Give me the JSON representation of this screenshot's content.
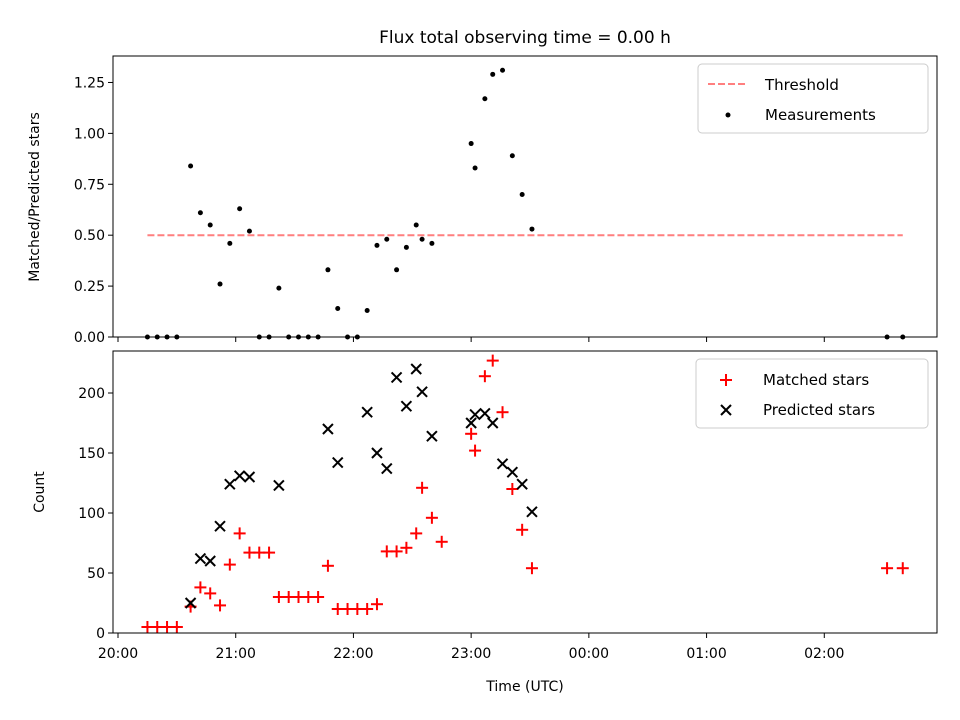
{
  "title": "Flux total observing time = 0.00 h",
  "colors": {
    "threshold": "#ff7f7f",
    "matched": "#ff0000",
    "predicted": "#000000",
    "measurement": "#000000"
  },
  "chart_data": [
    {
      "type": "scatter",
      "ylabel": "Matched/Predicted stars",
      "xlabel": "",
      "xlim": [
        "20:00",
        "03:00"
      ],
      "ylim": [
        0,
        1.38
      ],
      "yticks": [
        0,
        0.25,
        0.5,
        0.75,
        1.0,
        1.25
      ],
      "ytick_labels": [
        "0.00",
        "0.25",
        "0.50",
        "0.75",
        "1.00",
        "1.25"
      ],
      "legend": {
        "placement": "top-right",
        "entries": [
          "Threshold",
          "Measurements"
        ]
      },
      "threshold": {
        "name": "Threshold",
        "value": 0.5,
        "x_start": "20:15",
        "x_end": "02:40"
      },
      "series": [
        {
          "name": "Measurements",
          "points": [
            [
              "20:15",
              0
            ],
            [
              "20:20",
              0
            ],
            [
              "20:25",
              0
            ],
            [
              "20:30",
              0
            ],
            [
              "20:37",
              0.84
            ],
            [
              "20:42",
              0.61
            ],
            [
              "20:47",
              0.55
            ],
            [
              "20:52",
              0.26
            ],
            [
              "20:57",
              0.46
            ],
            [
              "21:02",
              0.63
            ],
            [
              "21:07",
              0.52
            ],
            [
              "21:12",
              0
            ],
            [
              "21:17",
              0
            ],
            [
              "21:22",
              0.24
            ],
            [
              "21:27",
              0
            ],
            [
              "21:32",
              0
            ],
            [
              "21:37",
              0
            ],
            [
              "21:42",
              0
            ],
            [
              "21:47",
              0.33
            ],
            [
              "21:52",
              0.14
            ],
            [
              "21:57",
              0
            ],
            [
              "22:02",
              0
            ],
            [
              "22:07",
              0.13
            ],
            [
              "22:12",
              0.45
            ],
            [
              "22:17",
              0.48
            ],
            [
              "22:22",
              0.33
            ],
            [
              "22:27",
              0.44
            ],
            [
              "22:32",
              0.55
            ],
            [
              "22:35",
              0.48
            ],
            [
              "22:40",
              0.46
            ],
            [
              "23:00",
              0.95
            ],
            [
              "23:02",
              0.83
            ],
            [
              "23:07",
              1.17
            ],
            [
              "23:11",
              1.29
            ],
            [
              "23:16",
              1.31
            ],
            [
              "23:21",
              0.89
            ],
            [
              "23:26",
              0.7
            ],
            [
              "23:31",
              0.53
            ],
            [
              "02:32",
              0
            ],
            [
              "02:40",
              0
            ]
          ]
        }
      ]
    },
    {
      "type": "scatter",
      "ylabel": "Count",
      "xlabel": "Time (UTC)",
      "xlim": [
        "20:00",
        "03:00"
      ],
      "ylim": [
        0,
        235
      ],
      "yticks": [
        0,
        50,
        100,
        150,
        200
      ],
      "ytick_labels": [
        "0",
        "50",
        "100",
        "150",
        "200"
      ],
      "xticks": [
        "20:00",
        "21:00",
        "22:00",
        "23:00",
        "00:00",
        "01:00",
        "02:00"
      ],
      "legend": {
        "placement": "top-right",
        "entries": [
          "Matched stars",
          "Predicted stars"
        ]
      },
      "series": [
        {
          "name": "Matched stars",
          "marker": "+",
          "points": [
            [
              "20:15",
              5
            ],
            [
              "20:20",
              5
            ],
            [
              "20:25",
              5
            ],
            [
              "20:30",
              5
            ],
            [
              "20:37",
              22
            ],
            [
              "20:42",
              38
            ],
            [
              "20:47",
              33
            ],
            [
              "20:52",
              23
            ],
            [
              "20:57",
              57
            ],
            [
              "21:02",
              83
            ],
            [
              "21:07",
              67
            ],
            [
              "21:12",
              67
            ],
            [
              "21:17",
              67
            ],
            [
              "21:22",
              30
            ],
            [
              "21:27",
              30
            ],
            [
              "21:32",
              30
            ],
            [
              "21:37",
              30
            ],
            [
              "21:42",
              30
            ],
            [
              "21:47",
              56
            ],
            [
              "21:52",
              20
            ],
            [
              "21:57",
              20
            ],
            [
              "22:02",
              20
            ],
            [
              "22:07",
              20
            ],
            [
              "22:12",
              24
            ],
            [
              "22:17",
              68
            ],
            [
              "22:22",
              68
            ],
            [
              "22:27",
              71
            ],
            [
              "22:32",
              83
            ],
            [
              "22:35",
              121
            ],
            [
              "22:40",
              96
            ],
            [
              "22:45",
              76
            ],
            [
              "23:00",
              166
            ],
            [
              "23:02",
              152
            ],
            [
              "23:07",
              214
            ],
            [
              "23:11",
              227
            ],
            [
              "23:16",
              184
            ],
            [
              "23:21",
              120
            ],
            [
              "23:26",
              86
            ],
            [
              "23:31",
              54
            ],
            [
              "02:32",
              54
            ],
            [
              "02:40",
              54
            ]
          ]
        },
        {
          "name": "Predicted stars",
          "marker": "x",
          "points": [
            [
              "20:37",
              25
            ],
            [
              "20:42",
              62
            ],
            [
              "20:47",
              60
            ],
            [
              "20:52",
              89
            ],
            [
              "20:57",
              124
            ],
            [
              "21:02",
              131
            ],
            [
              "21:07",
              130
            ],
            [
              "21:22",
              123
            ],
            [
              "21:47",
              170
            ],
            [
              "21:52",
              142
            ],
            [
              "22:07",
              184
            ],
            [
              "22:12",
              150
            ],
            [
              "22:17",
              137
            ],
            [
              "22:22",
              213
            ],
            [
              "22:27",
              189
            ],
            [
              "22:32",
              220
            ],
            [
              "22:35",
              201
            ],
            [
              "22:40",
              164
            ],
            [
              "23:00",
              175
            ],
            [
              "23:02",
              182
            ],
            [
              "23:07",
              183
            ],
            [
              "23:11",
              175
            ],
            [
              "23:16",
              141
            ],
            [
              "23:21",
              134
            ],
            [
              "23:26",
              124
            ],
            [
              "23:31",
              101
            ]
          ]
        }
      ]
    }
  ]
}
